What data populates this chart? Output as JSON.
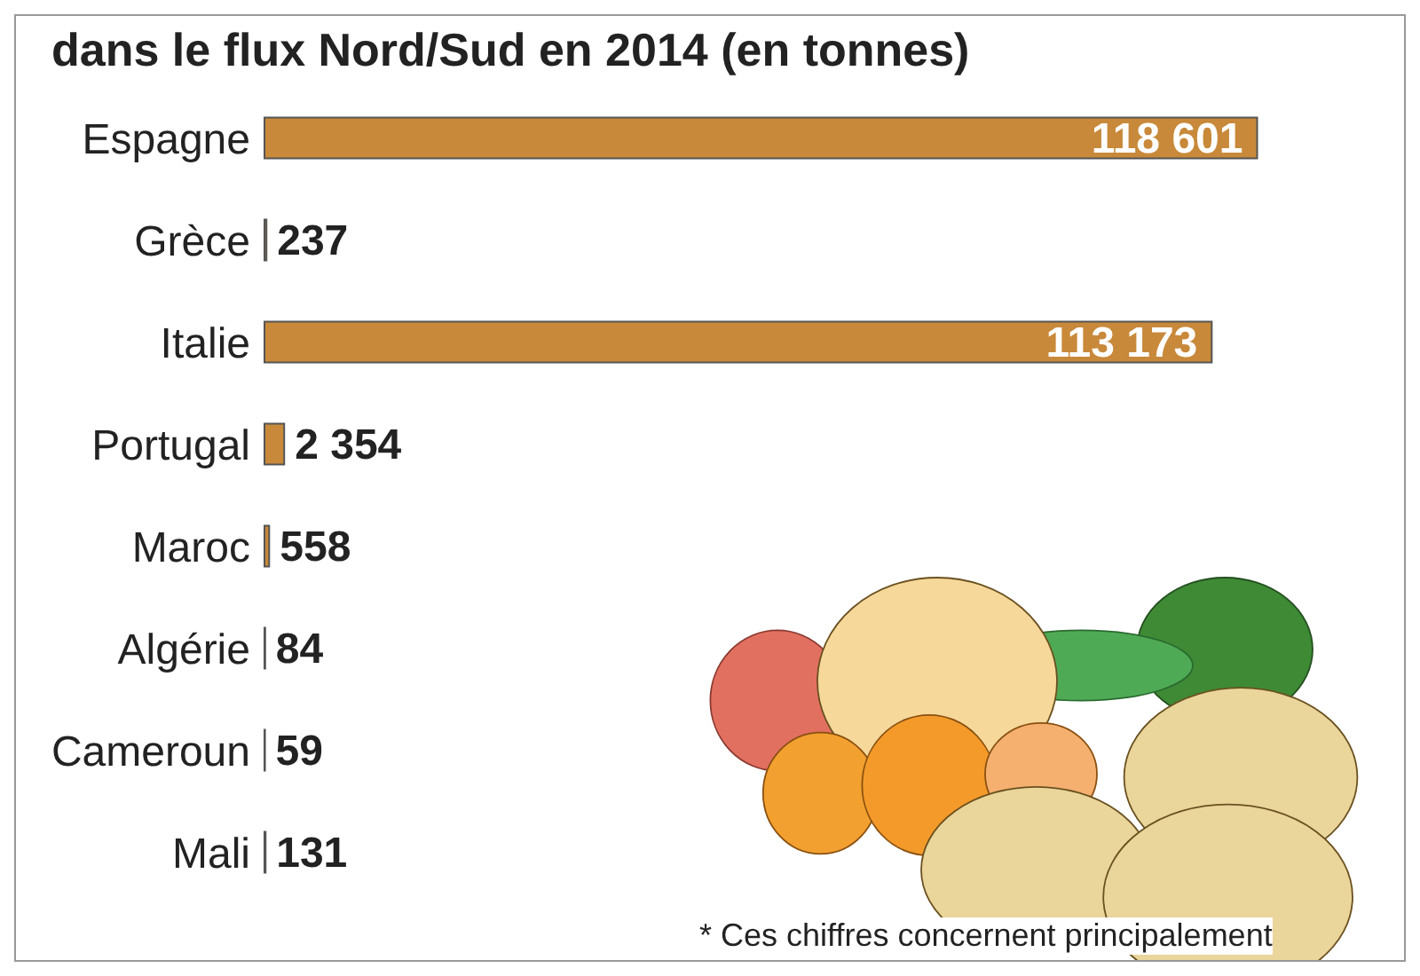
{
  "chart_data": {
    "type": "bar",
    "orientation": "horizontal",
    "title": "dans le flux Nord/Sud en 2014 (en tonnes)",
    "categories": [
      "Espagne",
      "Grèce",
      "Italie",
      "Portugal",
      "Maroc",
      "Algérie",
      "Cameroun",
      "Mali"
    ],
    "values": [
      118601,
      237,
      113173,
      2354,
      558,
      84,
      59,
      131
    ],
    "value_labels": [
      "118 601",
      "237",
      "113 173",
      "2 354",
      "558",
      "84",
      "59",
      "131"
    ],
    "color": "#c8893a",
    "tick_labels": "y",
    "annotations": [
      "* Ces chiffres concernent principalement"
    ]
  }
}
